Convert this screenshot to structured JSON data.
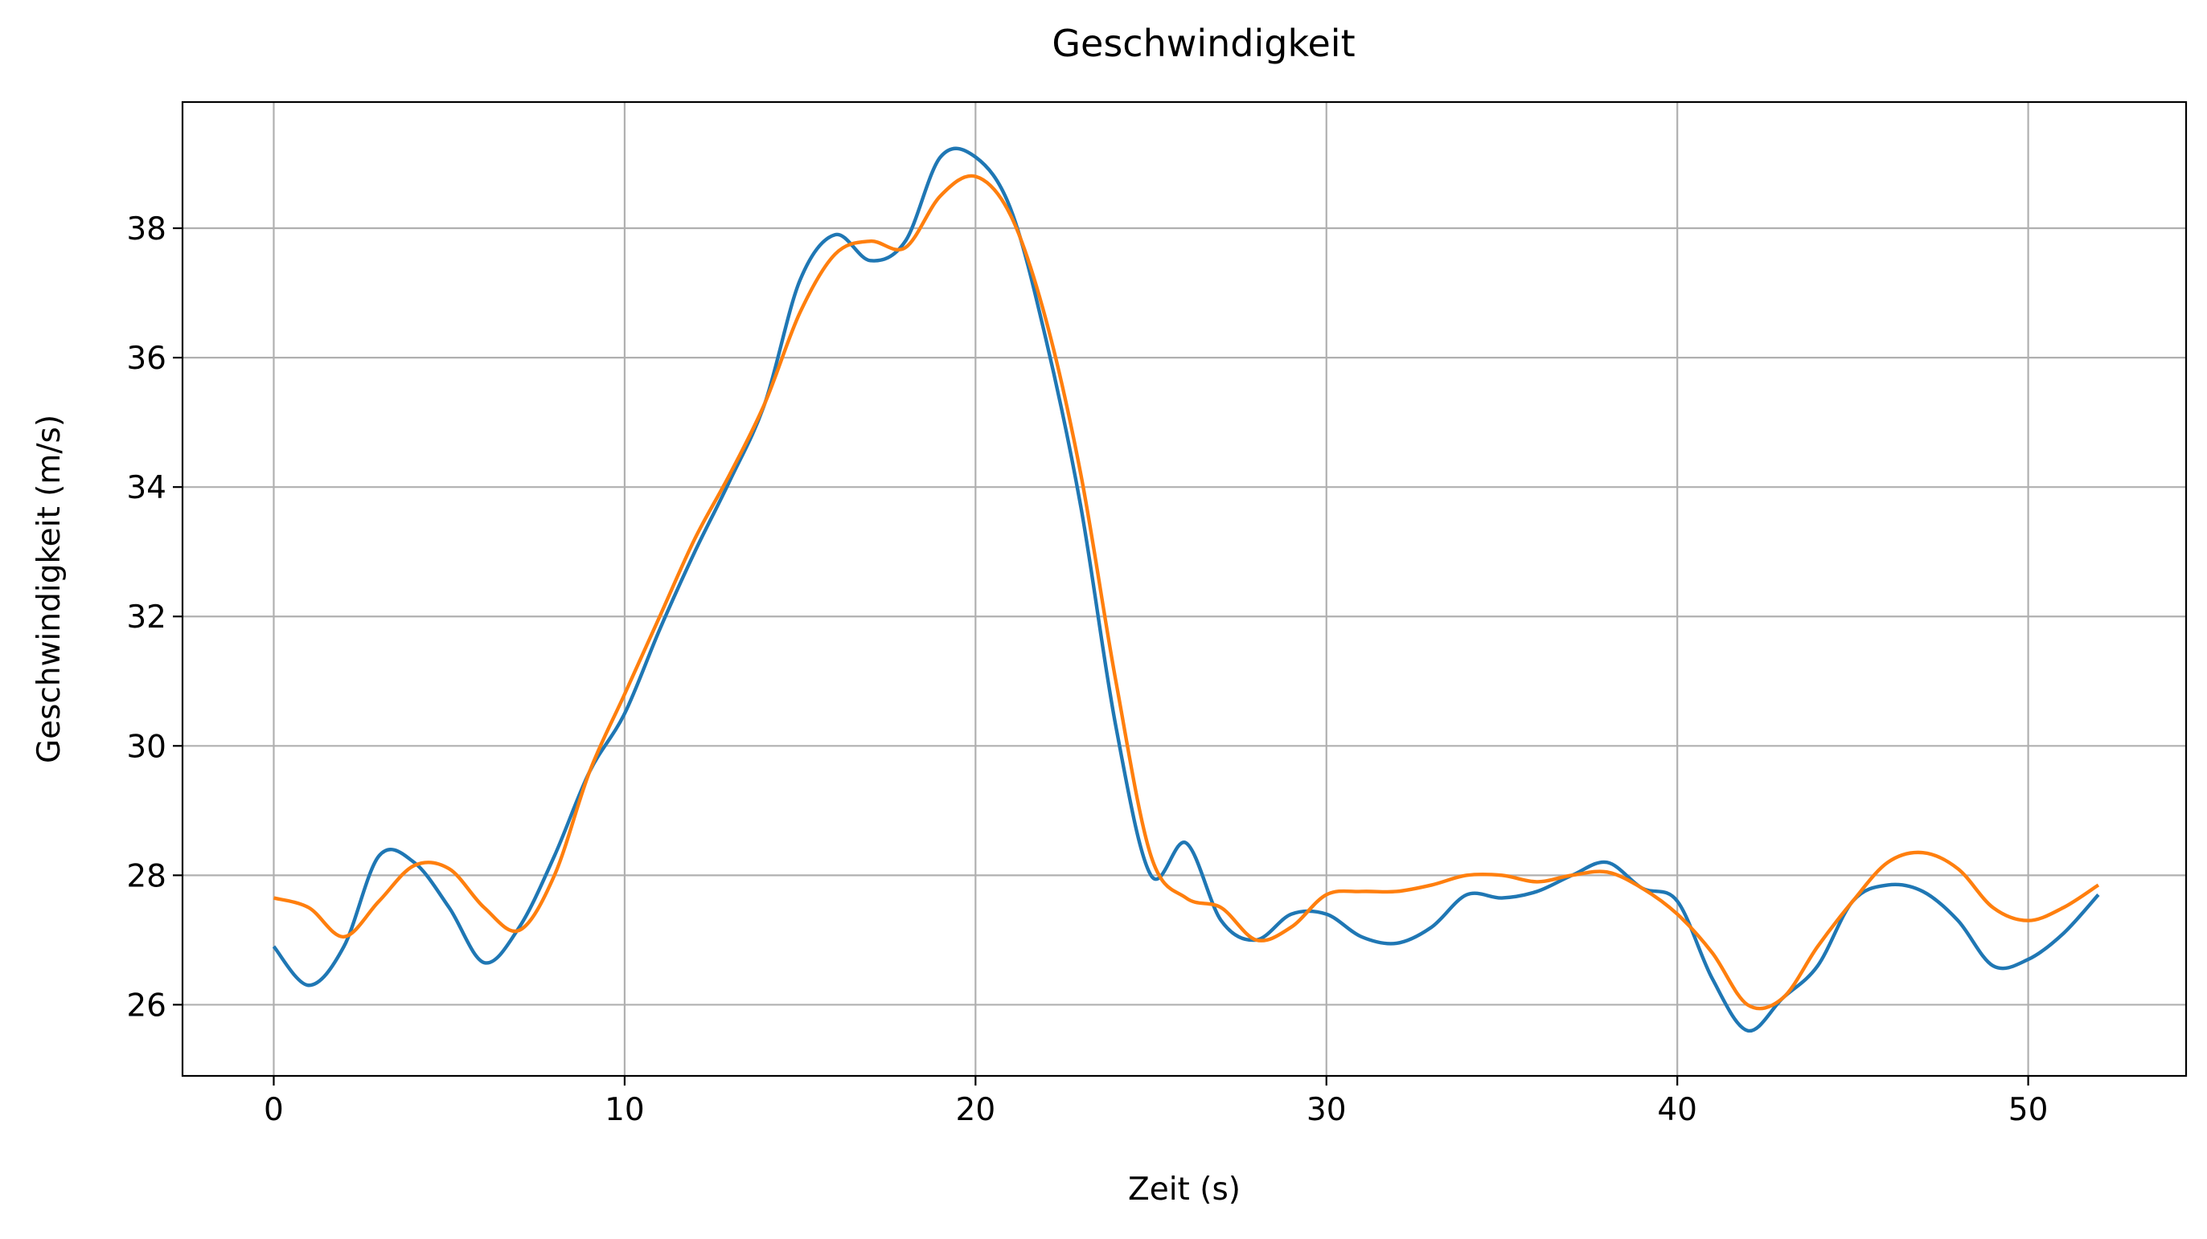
{
  "chart_data": {
    "type": "line",
    "title": "Geschwindigkeit",
    "x_label": "Zeit (s)",
    "y_label": "Geschwindigkeit (m/s)",
    "x": [
      0,
      1,
      2,
      3,
      4,
      5,
      6,
      7,
      8,
      9,
      10,
      11,
      12,
      13,
      14,
      15,
      16,
      17,
      18,
      19,
      20,
      21,
      22,
      23,
      24,
      25,
      26,
      27,
      28,
      29,
      30,
      31,
      32,
      33,
      34,
      35,
      36,
      37,
      38,
      39,
      40,
      41,
      42,
      43,
      44,
      45,
      46,
      47,
      48,
      49,
      50,
      51,
      52
    ],
    "series": [
      {
        "color": "#1f77b4",
        "values": [
          26.9,
          26.3,
          26.9,
          28.3,
          28.2,
          27.5,
          26.65,
          27.2,
          28.3,
          29.6,
          30.5,
          31.8,
          33.0,
          34.1,
          35.3,
          37.2,
          37.9,
          37.5,
          37.8,
          39.1,
          39.1,
          38.3,
          36.3,
          33.7,
          30.3,
          28.0,
          28.5,
          27.3,
          27.0,
          27.4,
          27.4,
          27.05,
          26.95,
          27.2,
          27.7,
          27.65,
          27.75,
          28.0,
          28.2,
          27.8,
          27.6,
          26.4,
          25.6,
          26.1,
          26.6,
          27.6,
          27.85,
          27.75,
          27.3,
          26.6,
          26.7,
          27.1,
          27.7
        ]
      },
      {
        "color": "#ff7f0e",
        "values": [
          27.65,
          27.5,
          27.05,
          27.6,
          28.15,
          28.1,
          27.5,
          27.15,
          28.0,
          29.6,
          30.8,
          32.0,
          33.2,
          34.2,
          35.3,
          36.7,
          37.6,
          37.8,
          37.7,
          38.5,
          38.8,
          38.2,
          36.6,
          34.2,
          31.0,
          28.3,
          27.65,
          27.5,
          27.0,
          27.2,
          27.7,
          27.75,
          27.75,
          27.85,
          28.0,
          28.0,
          27.9,
          28.0,
          28.05,
          27.8,
          27.4,
          26.8,
          26.0,
          26.1,
          26.9,
          27.6,
          28.2,
          28.35,
          28.1,
          27.5,
          27.3,
          27.5,
          27.85
        ]
      }
    ],
    "xlim": [
      -2.6,
      54.5
    ],
    "ylim": [
      24.9,
      39.95
    ],
    "xticks": [
      0,
      10,
      20,
      30,
      40,
      50
    ],
    "yticks": [
      26,
      28,
      30,
      32,
      34,
      36,
      38
    ],
    "grid": true
  }
}
